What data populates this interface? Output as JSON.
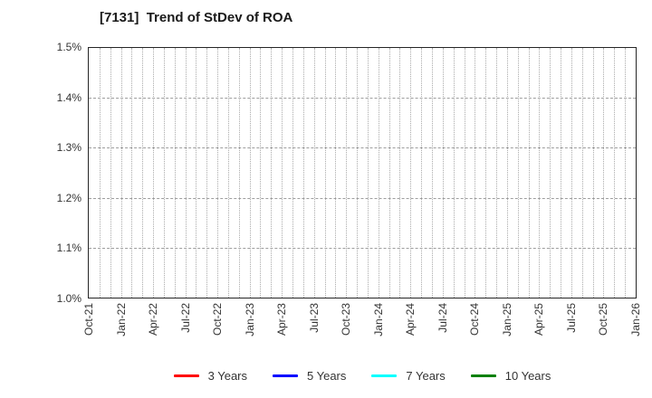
{
  "title": "[7131]  Trend of StDev of ROA",
  "axes": {
    "y": {
      "ticks": [
        "1.5%",
        "1.4%",
        "1.3%",
        "1.2%",
        "1.1%",
        "1.0%"
      ],
      "min": 1.0,
      "max": 1.5,
      "unit": "%"
    },
    "x": {
      "ticks": [
        "Oct-21",
        "Jan-22",
        "Apr-22",
        "Jul-22",
        "Oct-22",
        "Jan-23",
        "Apr-23",
        "Jul-23",
        "Oct-23",
        "Jan-24",
        "Apr-24",
        "Jul-24",
        "Oct-24",
        "Jan-25",
        "Apr-25",
        "Jul-25",
        "Oct-25",
        "Jan-26"
      ],
      "months_total": 51,
      "months_per_labeled_tick": 3
    }
  },
  "legend": {
    "items": [
      {
        "label": "3 Years",
        "color": "#ff0000"
      },
      {
        "label": "5 Years",
        "color": "#0000ff"
      },
      {
        "label": "7 Years",
        "color": "#00ffff"
      },
      {
        "label": "10 Years",
        "color": "#008000"
      }
    ]
  },
  "chart_data": {
    "type": "line",
    "title": "[7131]  Trend of StDev of ROA",
    "xlabel": "",
    "ylabel": "",
    "x_tick_labels": [
      "Oct-21",
      "Jan-22",
      "Apr-22",
      "Jul-22",
      "Oct-22",
      "Jan-23",
      "Apr-23",
      "Jul-23",
      "Oct-23",
      "Jan-24",
      "Apr-24",
      "Jul-24",
      "Oct-24",
      "Jan-25",
      "Apr-25",
      "Jul-25",
      "Oct-25",
      "Jan-26"
    ],
    "y_tick_labels": [
      "1.0%",
      "1.1%",
      "1.2%",
      "1.3%",
      "1.4%",
      "1.5%"
    ],
    "ylim": [
      1.0,
      1.5
    ],
    "grid": true,
    "grid_style": {
      "vertical": "dotted-monthly",
      "horizontal": "dashed-0.1-steps"
    },
    "legend_position": "bottom-center",
    "series": [
      {
        "name": "3 Years",
        "color": "#ff0000",
        "values": []
      },
      {
        "name": "5 Years",
        "color": "#0000ff",
        "values": []
      },
      {
        "name": "7 Years",
        "color": "#00ffff",
        "values": []
      },
      {
        "name": "10 Years",
        "color": "#008000",
        "values": []
      }
    ],
    "note": "plot area contains no drawn data lines"
  }
}
